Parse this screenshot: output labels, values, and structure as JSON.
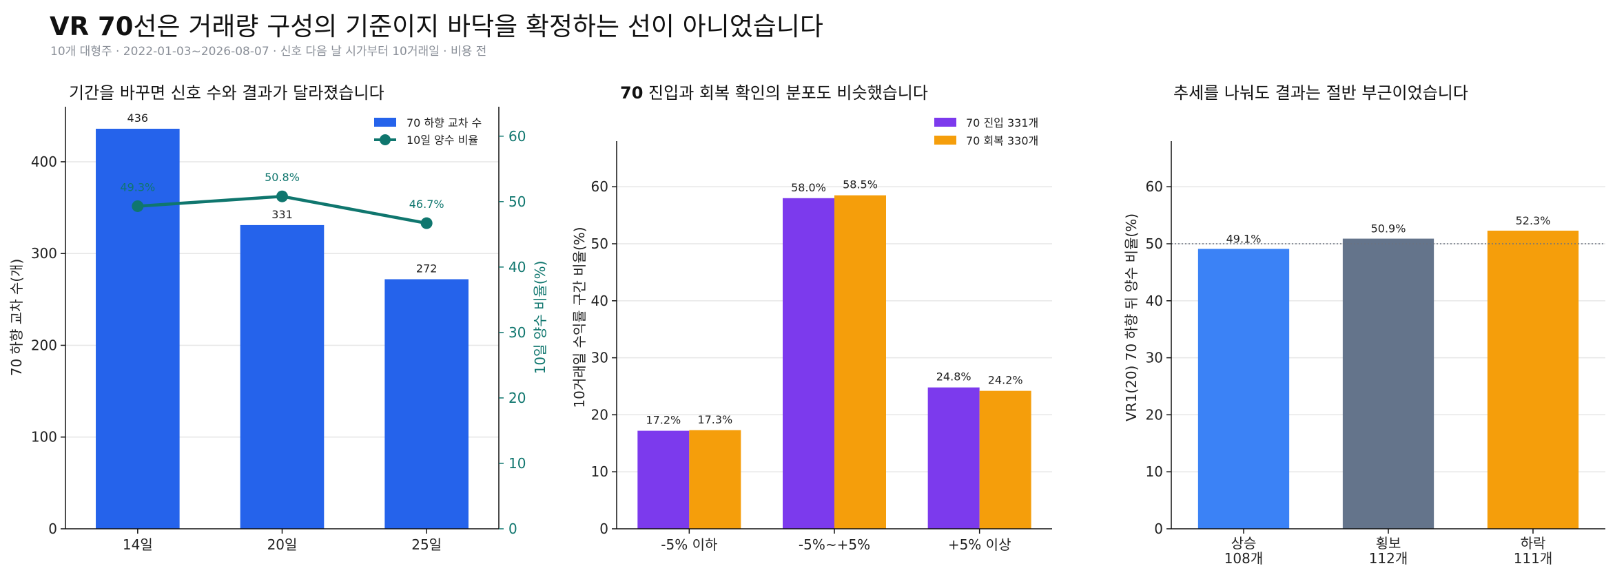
{
  "header": {
    "title_bold": "VR 70",
    "title_rest": "선은 거래량 구성의 기준이지 바닥을 확정하는 선이 아니었습니다",
    "subtitle": "10개 대형주 · 2022-01-03~2026-08-07 · 신호 다음 날 시가부터 10거래일 · 비용 전"
  },
  "chart_data": [
    {
      "type": "bar",
      "title": "기간을 바꾸면 신호 수와 결과가 달라졌습니다",
      "categories": [
        "14일",
        "20일",
        "25일"
      ],
      "ylabel": "70 하향 교차 수(개)",
      "ylabel2": "10일 양수 비율(%)",
      "ylim": [
        0,
        460
      ],
      "yticks": [
        0,
        100,
        200,
        300,
        400
      ],
      "ylim2": [
        0,
        64.5
      ],
      "yticks2": [
        0,
        10,
        20,
        30,
        40,
        50,
        60
      ],
      "series": [
        {
          "name": "70 하향 교차 수",
          "type": "bar",
          "axis": "left",
          "color": "#2563eb",
          "values": [
            436,
            331,
            272
          ],
          "labels": [
            "436",
            "331",
            "272"
          ]
        },
        {
          "name": "10일 양수 비율",
          "type": "line",
          "axis": "right",
          "color": "#0f766e",
          "values": [
            49.3,
            50.8,
            46.7
          ],
          "labels": [
            "49.3%",
            "50.8%",
            "46.7%"
          ]
        }
      ],
      "legend": "top-right",
      "grid": true
    },
    {
      "type": "bar",
      "title": "70 진입과 회복 확인의 분포도 비슷했습니다",
      "categories": [
        "-5% 이하",
        "-5%~+5%",
        "+5% 이상"
      ],
      "ylabel": "10거래일 수익률 구간 비율(%)",
      "ylim": [
        0,
        68
      ],
      "yticks": [
        0,
        10,
        20,
        30,
        40,
        50,
        60
      ],
      "series": [
        {
          "name": "70 진입 331개",
          "color": "#7c3aed",
          "values": [
            17.2,
            58.0,
            24.8
          ],
          "labels": [
            "17.2%",
            "58.0%",
            "24.8%"
          ]
        },
        {
          "name": "70 회복 330개",
          "color": "#f59e0b",
          "values": [
            17.3,
            58.5,
            24.2
          ],
          "labels": [
            "17.3%",
            "58.5%",
            "24.2%"
          ]
        }
      ],
      "legend": "top-right",
      "grid": true
    },
    {
      "type": "bar",
      "title": "추세를 나눠도 결과는 절반 부근이었습니다",
      "categories": [
        "상승",
        "횡보",
        "하락"
      ],
      "category_counts": [
        "108개",
        "112개",
        "111개"
      ],
      "ylabel": "VR1(20) 70 하향 뒤 양수 비율(%)",
      "ylim": [
        0,
        68
      ],
      "yticks": [
        0,
        10,
        20,
        30,
        40,
        50,
        60
      ],
      "reference_line": 50,
      "values": [
        49.1,
        50.9,
        52.3
      ],
      "labels": [
        "49.1%",
        "50.9%",
        "52.3%"
      ],
      "colors": [
        "#3b82f6",
        "#64748b",
        "#f59e0b"
      ],
      "grid": true
    }
  ]
}
